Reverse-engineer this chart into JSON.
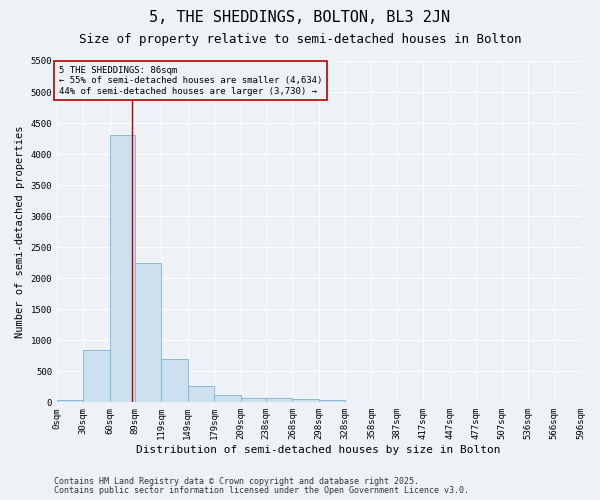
{
  "title": "5, THE SHEDDINGS, BOLTON, BL3 2JN",
  "subtitle": "Size of property relative to semi-detached houses in Bolton",
  "xlabel": "Distribution of semi-detached houses by size in Bolton",
  "ylabel": "Number of semi-detached properties",
  "bin_edges": [
    0,
    30,
    60,
    89,
    119,
    149,
    179,
    209,
    238,
    268,
    298,
    328,
    358,
    387,
    417,
    447,
    477,
    507,
    536,
    566,
    596
  ],
  "bin_counts": [
    30,
    850,
    4300,
    2250,
    700,
    260,
    120,
    70,
    65,
    50,
    35,
    5,
    3,
    2,
    1,
    1,
    1,
    0,
    0,
    0
  ],
  "bar_color": "#cce0f0",
  "bar_edge_color": "#7ab4d4",
  "property_line_x": 86,
  "property_line_color": "#bb0000",
  "ylim": [
    0,
    5500
  ],
  "yticks": [
    0,
    500,
    1000,
    1500,
    2000,
    2500,
    3000,
    3500,
    4000,
    4500,
    5000,
    5500
  ],
  "annotation_title": "5 THE SHEDDINGS: 86sqm",
  "annotation_line1": "← 55% of semi-detached houses are smaller (4,634)",
  "annotation_line2": "44% of semi-detached houses are larger (3,730) →",
  "annotation_box_color": "#bb0000",
  "footnote1": "Contains HM Land Registry data © Crown copyright and database right 2025.",
  "footnote2": "Contains public sector information licensed under the Open Government Licence v3.0.",
  "background_color": "#eef2f7",
  "grid_color": "#ffffff",
  "title_fontsize": 11,
  "subtitle_fontsize": 9,
  "tick_label_fontsize": 6.5,
  "xlabel_fontsize": 8,
  "ylabel_fontsize": 7.5,
  "footnote_fontsize": 6,
  "annotation_fontsize": 6.5
}
